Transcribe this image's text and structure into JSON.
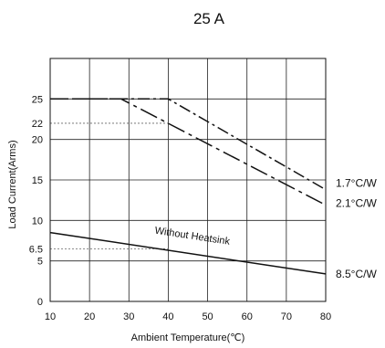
{
  "chart_data": {
    "type": "line",
    "title": "25 A",
    "xlabel": "Ambient Temperature(℃)",
    "ylabel": "Load Current(Arms)",
    "xlim": [
      10,
      80
    ],
    "ylim": [
      0,
      30
    ],
    "x_ticks": [
      10,
      20,
      30,
      40,
      50,
      60,
      70,
      80
    ],
    "y_ticks": [
      0,
      5,
      6.5,
      10,
      15,
      20,
      22,
      25
    ],
    "x_grid": [
      10,
      20,
      30,
      40,
      50,
      60,
      70,
      80
    ],
    "y_grid": [
      5,
      10,
      15,
      20,
      25,
      30
    ],
    "grid": true,
    "series": [
      {
        "name": "1.7°C/W",
        "style": "dash-dot",
        "points": [
          [
            10,
            25
          ],
          [
            40,
            25
          ],
          [
            80,
            13.8
          ]
        ]
      },
      {
        "name": "2.1°C/W",
        "style": "dash-dot-long",
        "points": [
          [
            10,
            25
          ],
          [
            28,
            25
          ],
          [
            80,
            11.9
          ]
        ]
      },
      {
        "name": "8.5°C/W",
        "style": "solid",
        "points": [
          [
            10,
            8.5
          ],
          [
            80,
            3.4
          ]
        ]
      }
    ],
    "reference_lines": [
      {
        "y": 22,
        "x_end": 40
      },
      {
        "y": 6.5,
        "x_end": 40
      }
    ],
    "annotations": [
      {
        "text": "Without Heatsink",
        "x": 46,
        "y": 7.7
      }
    ]
  }
}
